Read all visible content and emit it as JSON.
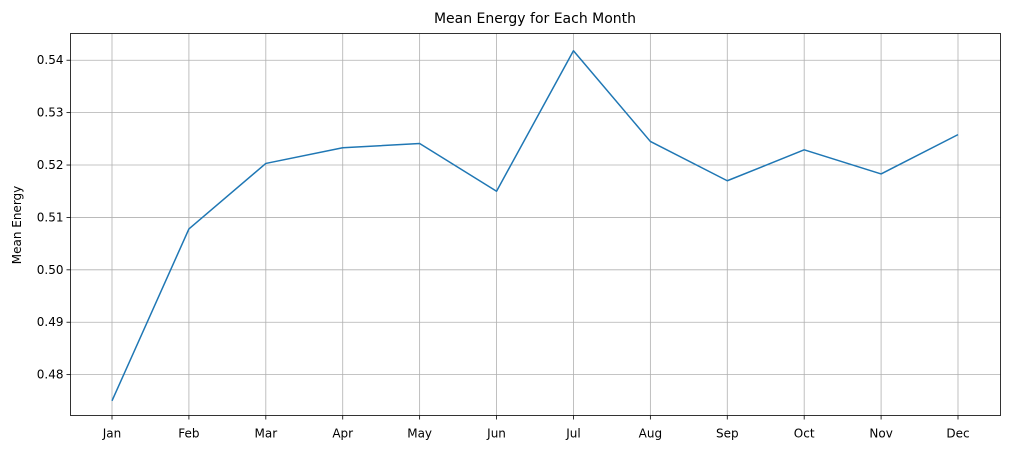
{
  "chart_data": {
    "type": "line",
    "title": "Mean Energy for Each Month",
    "xlabel": "",
    "ylabel": "Mean Energy",
    "categories": [
      "Jan",
      "Feb",
      "Mar",
      "Apr",
      "May",
      "Jun",
      "Jul",
      "Aug",
      "Sep",
      "Oct",
      "Nov",
      "Dec"
    ],
    "series": [
      {
        "values": [
          0.475,
          0.5078,
          0.5203,
          0.5233,
          0.5241,
          0.515,
          0.5418,
          0.5245,
          0.517,
          0.5229,
          0.5183,
          0.5258
        ],
        "color": "#1f77b4"
      }
    ],
    "yticks": [
      "0.48",
      "0.49",
      "0.50",
      "0.51",
      "0.52",
      "0.53",
      "0.54"
    ],
    "ylim": [
      0.4722,
      0.5451
    ],
    "grid": true
  }
}
